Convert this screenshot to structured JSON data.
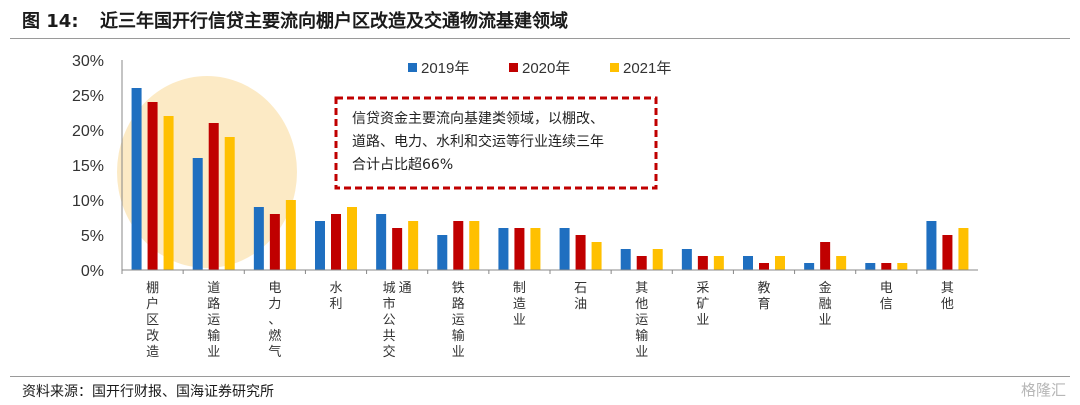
{
  "figure": {
    "label": "图 14:",
    "title": "近三年国开行信贷主要流向棚户区改造及交通物流基建领域",
    "source": "资料来源：国开行财报、国海证券研究所",
    "watermark": "格隆汇"
  },
  "colors": {
    "s2019": "#1f6fc0",
    "s2020": "#c00000",
    "s2021": "#ffc000",
    "highlight": "#fbe3b2",
    "annotation_border": "#c00000"
  },
  "chart_data": {
    "type": "bar",
    "categories": [
      "棚户区改造",
      "道路运输业",
      "电力、燃气",
      "水利",
      "城市公共交通",
      "铁路运输业",
      "制造业",
      "石油",
      "其他运输业",
      "采矿业",
      "教育",
      "金融业",
      "电信",
      "其他"
    ],
    "series": [
      {
        "name": "2019年",
        "color": "#1f6fc0",
        "values": [
          26,
          16,
          9,
          7,
          8,
          5,
          6,
          6,
          3,
          3,
          2,
          1,
          1,
          7
        ]
      },
      {
        "name": "2020年",
        "color": "#c00000",
        "values": [
          24,
          21,
          8,
          8,
          6,
          7,
          6,
          5,
          2,
          2,
          1,
          4,
          1,
          5
        ]
      },
      {
        "name": "2021年",
        "color": "#ffc000",
        "values": [
          22,
          19,
          10,
          9,
          7,
          7,
          6,
          4,
          3,
          2,
          2,
          2,
          1,
          6
        ]
      }
    ],
    "ylim": [
      0,
      30
    ],
    "yticks": [
      "0%",
      "5%",
      "10%",
      "15%",
      "20%",
      "25%",
      "30%"
    ],
    "ytick_values": [
      0,
      5,
      10,
      15,
      20,
      25,
      30
    ],
    "legend": "top",
    "grid": false,
    "annotation": {
      "lines": [
        "信贷资金主要流向基建类领域，以棚改、",
        "道路、电力、水利和交运等行业连续三年",
        "合计占比超66%"
      ]
    }
  }
}
